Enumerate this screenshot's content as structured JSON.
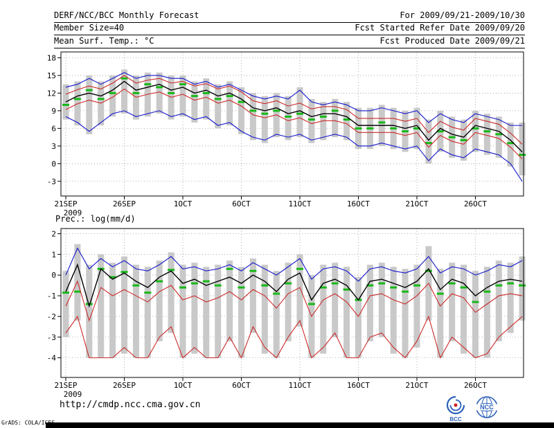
{
  "header": {
    "row1_left": "DERF/NCC/BCC Monthly Forecast",
    "row1_right": "For 2009/09/21-2009/10/30",
    "row2_left": "Member Size=40",
    "row2_right": "Fcst Started Refer Date 2009/09/20",
    "row3_left": "Mean Surf. Temp.: °C",
    "row3_right": "Fcst Produced Date 2009/09/21"
  },
  "panel2_label": "Prec.: log(mm/d)",
  "footer": {
    "url": "http://cmdp.ncc.cma.gov.cn",
    "bcc_label": "BCC",
    "ncc_label": "NCC",
    "grads_label": "GrADS: COLA/IGES"
  },
  "colors": {
    "envelope_blue": "#1414cc",
    "spread_red": "#cc2828",
    "mean_black": "#000000",
    "obs_green": "#17b817",
    "bar_gray": "#c9c9c9",
    "grid_gray": "#9a9a9a",
    "logo_blue": "#2a5fb8",
    "logo_red": "#cc2222"
  },
  "chart_data": [
    {
      "type": "line",
      "title": "Mean Surf. Temp.: °C",
      "ylabel": "°C",
      "grid": true,
      "legend": "none",
      "ylim": [
        -3,
        18
      ],
      "yticks": [
        18,
        15,
        12,
        9,
        6,
        3,
        0,
        -3
      ],
      "x_ticklabels": [
        "21SEP",
        "26SEP",
        "1OCT",
        "6OCT",
        "11OCT",
        "16OCT",
        "21OCT",
        "26OCT"
      ],
      "x_tick_days": [
        0,
        5,
        10,
        15,
        20,
        25,
        30,
        35
      ],
      "x_year_label": "2009",
      "n_points": 40,
      "bars": {
        "name": "ensemble-spread-bar",
        "color": "#c9c9c9",
        "high": [
          13.5,
          14.0,
          15.0,
          14.0,
          15.0,
          16.0,
          15.0,
          15.5,
          15.5,
          15.0,
          15.0,
          14.0,
          14.5,
          13.5,
          14.0,
          13.0,
          12.0,
          11.5,
          12.0,
          11.5,
          13.0,
          11.0,
          10.5,
          11.0,
          10.5,
          9.5,
          9.5,
          10.0,
          9.5,
          9.0,
          9.5,
          7.5,
          9.0,
          8.0,
          7.5,
          9.0,
          8.5,
          8.0,
          7.0,
          7.0
        ],
        "low": [
          7.5,
          6.5,
          5.0,
          6.5,
          8.0,
          8.5,
          7.5,
          8.0,
          8.5,
          7.5,
          8.0,
          7.0,
          7.5,
          6.0,
          6.5,
          5.0,
          4.0,
          3.5,
          4.5,
          4.0,
          4.5,
          3.5,
          4.0,
          4.5,
          4.0,
          2.5,
          2.5,
          3.0,
          2.5,
          2.0,
          2.5,
          0.0,
          2.0,
          1.0,
          0.5,
          2.0,
          1.5,
          1.0,
          -0.5,
          -2.0
        ]
      },
      "dashes": {
        "name": "observation",
        "color": "#17b817",
        "values": [
          10.0,
          11.0,
          12.5,
          11.0,
          12.0,
          14.5,
          12.0,
          13.5,
          13.0,
          12.0,
          13.5,
          11.5,
          12.0,
          11.0,
          11.5,
          10.5,
          9.0,
          8.5,
          9.0,
          8.0,
          8.5,
          7.5,
          8.0,
          9.0,
          7.5,
          6.0,
          6.0,
          7.0,
          6.0,
          5.5,
          6.0,
          3.5,
          5.5,
          4.5,
          4.0,
          6.0,
          5.5,
          5.0,
          3.5,
          1.5
        ]
      },
      "series": [
        {
          "name": "ensemble-max",
          "color": "#1414cc",
          "width": 1.1,
          "values": [
            13.0,
            13.5,
            14.5,
            13.5,
            14.5,
            15.5,
            14.5,
            15.0,
            15.0,
            14.5,
            14.5,
            13.5,
            14.0,
            13.0,
            13.5,
            12.5,
            11.5,
            11.0,
            11.5,
            11.0,
            12.5,
            10.5,
            10.0,
            10.5,
            10.0,
            9.0,
            9.0,
            9.5,
            9.0,
            8.5,
            9.0,
            7.0,
            8.5,
            7.5,
            7.0,
            8.5,
            8.0,
            7.5,
            6.5,
            6.5
          ]
        },
        {
          "name": "ensemble-min",
          "color": "#1414cc",
          "width": 1.1,
          "values": [
            8.0,
            7.0,
            5.5,
            7.0,
            8.5,
            9.0,
            8.0,
            8.5,
            9.0,
            8.0,
            8.5,
            7.5,
            8.0,
            6.5,
            7.0,
            5.5,
            4.5,
            4.0,
            5.0,
            4.5,
            5.0,
            4.0,
            4.5,
            5.0,
            4.5,
            3.0,
            3.0,
            3.5,
            3.0,
            2.5,
            3.0,
            0.5,
            2.5,
            1.5,
            1.0,
            2.5,
            2.0,
            1.5,
            0.0,
            -3.0
          ]
        },
        {
          "name": "spread-upper",
          "color": "#cc2828",
          "width": 1.1,
          "values": [
            11.8,
            12.6,
            13.2,
            12.7,
            13.7,
            15.0,
            13.7,
            14.2,
            14.5,
            13.7,
            14.0,
            13.2,
            13.6,
            12.7,
            13.2,
            12.2,
            10.7,
            10.2,
            10.7,
            9.8,
            10.3,
            9.3,
            9.7,
            9.7,
            9.2,
            7.7,
            7.7,
            7.7,
            7.7,
            7.2,
            7.7,
            5.3,
            7.2,
            6.2,
            5.7,
            7.7,
            7.2,
            6.7,
            5.2,
            3.3
          ]
        },
        {
          "name": "spread-lower",
          "color": "#cc2828",
          "width": 1.1,
          "values": [
            9.2,
            10.2,
            10.8,
            10.3,
            11.3,
            12.7,
            11.3,
            11.8,
            12.2,
            11.3,
            11.8,
            10.8,
            11.3,
            10.3,
            10.8,
            9.8,
            8.3,
            7.8,
            8.3,
            7.3,
            7.8,
            6.8,
            7.3,
            7.3,
            6.8,
            5.3,
            5.3,
            5.3,
            5.3,
            4.8,
            5.3,
            2.8,
            4.8,
            3.8,
            3.3,
            5.3,
            4.8,
            4.3,
            2.8,
            0.8
          ]
        },
        {
          "name": "ensemble-mean",
          "color": "#000000",
          "width": 1.4,
          "values": [
            10.5,
            11.5,
            12.0,
            11.5,
            12.5,
            14.0,
            12.5,
            13.0,
            13.5,
            12.5,
            13.0,
            12.0,
            12.5,
            11.5,
            12.0,
            11.0,
            9.5,
            9.0,
            9.5,
            8.5,
            9.0,
            8.0,
            8.5,
            8.5,
            8.0,
            6.5,
            6.5,
            6.5,
            6.5,
            6.0,
            6.5,
            4.0,
            6.0,
            5.0,
            4.5,
            6.5,
            6.0,
            5.5,
            4.0,
            2.0
          ]
        }
      ]
    },
    {
      "type": "line",
      "title": "Prec.: log(mm/d)",
      "ylabel": "log(mm/d)",
      "grid": true,
      "legend": "none",
      "ylim": [
        -4,
        2
      ],
      "yticks": [
        2,
        1,
        0,
        -1,
        -2,
        -3,
        -4
      ],
      "x_ticklabels": [
        "21SEP",
        "26SEP",
        "1OCT",
        "6OCT",
        "11OCT",
        "16OCT",
        "21OCT",
        "26OCT"
      ],
      "x_tick_days": [
        0,
        5,
        10,
        15,
        20,
        25,
        30,
        35
      ],
      "x_year_label": "2009",
      "n_points": 40,
      "bars": {
        "name": "ensemble-spread-bar",
        "color": "#c9c9c9",
        "high": [
          0.2,
          1.5,
          0.5,
          1.0,
          0.6,
          0.9,
          0.5,
          0.4,
          0.7,
          1.1,
          0.5,
          0.6,
          0.4,
          0.5,
          0.7,
          0.4,
          0.8,
          0.5,
          0.2,
          0.6,
          1.0,
          0.0,
          0.5,
          0.6,
          0.4,
          -0.1,
          0.5,
          0.6,
          0.4,
          0.3,
          0.5,
          1.4,
          0.3,
          0.6,
          0.5,
          0.2,
          0.4,
          0.7,
          0.6,
          0.9
        ],
        "low": [
          -3.0,
          -2.2,
          -4.0,
          -4.0,
          -4.0,
          -3.8,
          -4.0,
          -4.0,
          -3.2,
          -2.8,
          -4.0,
          -3.8,
          -4.0,
          -4.0,
          -3.2,
          -4.0,
          -2.8,
          -3.8,
          -4.0,
          -3.2,
          -2.5,
          -4.0,
          -3.8,
          -3.0,
          -4.0,
          -4.0,
          -3.2,
          -3.0,
          -3.8,
          -4.0,
          -3.5,
          -2.2,
          -4.0,
          -3.2,
          -3.8,
          -4.0,
          -4.0,
          -3.2,
          -2.8,
          -2.2
        ]
      },
      "dashes": {
        "name": "observation",
        "color": "#17b817",
        "values": [
          -0.85,
          -0.8,
          -1.4,
          0.3,
          -0.1,
          0.15,
          -0.5,
          -0.85,
          -0.3,
          0.25,
          -0.6,
          -0.4,
          -0.3,
          -0.5,
          0.3,
          -0.6,
          0.2,
          -0.5,
          -0.9,
          -0.4,
          0.3,
          -1.4,
          -0.6,
          -0.4,
          -0.7,
          -1.2,
          -0.5,
          -0.4,
          -0.6,
          -0.8,
          -0.5,
          0.2,
          -0.9,
          -0.4,
          -0.6,
          -1.3,
          -0.8,
          -0.5,
          -0.4,
          -0.5
        ]
      },
      "series": [
        {
          "name": "ensemble-max",
          "color": "#1414cc",
          "width": 1.1,
          "values": [
            0.0,
            1.3,
            0.3,
            0.8,
            0.4,
            0.7,
            0.3,
            0.2,
            0.5,
            0.9,
            0.3,
            0.4,
            0.2,
            0.3,
            0.5,
            0.2,
            0.6,
            0.3,
            0.0,
            0.4,
            0.8,
            -0.2,
            0.3,
            0.4,
            0.2,
            -0.3,
            0.3,
            0.4,
            0.2,
            0.1,
            0.3,
            0.9,
            0.1,
            0.4,
            0.3,
            0.0,
            0.2,
            0.5,
            0.4,
            0.7
          ]
        },
        {
          "name": "spread-lower",
          "color": "#cc2828",
          "width": 1.1,
          "values": [
            -1.5,
            -0.3,
            -2.2,
            -0.6,
            -1.0,
            -0.7,
            -1.0,
            -1.3,
            -0.8,
            -0.5,
            -1.2,
            -1.0,
            -1.3,
            -1.1,
            -0.8,
            -1.2,
            -0.7,
            -1.0,
            -1.6,
            -0.9,
            -0.6,
            -2.0,
            -1.2,
            -0.9,
            -1.3,
            -2.0,
            -1.0,
            -0.9,
            -1.2,
            -1.4,
            -1.0,
            -0.4,
            -1.5,
            -0.9,
            -1.1,
            -1.8,
            -1.4,
            -1.0,
            -0.9,
            -1.0
          ]
        },
        {
          "name": "ensemble-min",
          "color": "#cc2828",
          "width": 1.1,
          "values": [
            -2.8,
            -2.0,
            -4.0,
            -4.0,
            -4.0,
            -3.5,
            -4.0,
            -4.0,
            -3.0,
            -2.5,
            -4.0,
            -3.5,
            -4.0,
            -4.0,
            -3.0,
            -4.0,
            -2.5,
            -3.5,
            -4.0,
            -3.0,
            -2.2,
            -4.0,
            -3.5,
            -2.8,
            -4.0,
            -4.0,
            -3.0,
            -2.8,
            -3.5,
            -4.0,
            -3.2,
            -2.0,
            -4.0,
            -3.0,
            -3.5,
            -4.0,
            -3.8,
            -3.0,
            -2.5,
            -2.0
          ]
        },
        {
          "name": "ensemble-mean",
          "color": "#000000",
          "width": 1.4,
          "values": [
            -0.8,
            0.5,
            -1.5,
            0.3,
            -0.2,
            0.1,
            -0.3,
            -0.6,
            -0.1,
            0.2,
            -0.4,
            -0.2,
            -0.5,
            -0.3,
            -0.1,
            -0.4,
            0.0,
            -0.3,
            -0.8,
            -0.2,
            0.1,
            -1.2,
            -0.4,
            -0.2,
            -0.5,
            -1.2,
            -0.3,
            -0.2,
            -0.4,
            -0.6,
            -0.3,
            0.3,
            -0.7,
            -0.2,
            -0.4,
            -1.0,
            -0.6,
            -0.3,
            -0.2,
            -0.3
          ]
        }
      ]
    }
  ]
}
